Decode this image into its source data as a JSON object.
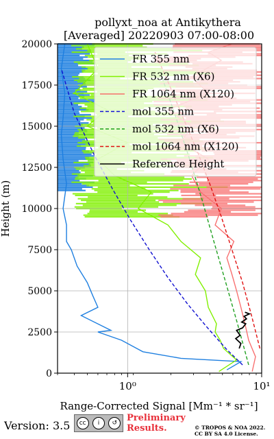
{
  "chart_data": {
    "type": "line",
    "title": "pollyxt_noa at Antikythera",
    "subtitle": "[Averaged] 20220903 07:00-08:00",
    "ylabel": "Height (m)",
    "xlabel": "Range-Corrected Signal [Mm⁻¹ * sr⁻¹]",
    "xscale": "log",
    "xlim": [
      0.3,
      10
    ],
    "ylim": [
      0,
      20000
    ],
    "yticks": [
      0,
      2500,
      5000,
      7500,
      10000,
      12500,
      15000,
      17500,
      20000
    ],
    "yticklabels": [
      "0",
      "2500",
      "5000",
      "7500",
      "10000",
      "12500",
      "15000",
      "17500",
      "20000"
    ],
    "xticks": [
      1,
      10
    ],
    "xticklabels": [
      "10⁰",
      "10¹"
    ],
    "grid": true,
    "legend_position": "top-right",
    "series": [
      {
        "name": "FR 355 nm",
        "color": "#1e7fe0",
        "style": "solid",
        "x": [
          5.5,
          7.0,
          2.5,
          1.3,
          0.9,
          0.6,
          0.75,
          0.45,
          0.6,
          0.55,
          0.5,
          0.42,
          0.38,
          0.35,
          0.35,
          0.33,
          0.35,
          0.33,
          0.32,
          0.33,
          0.34,
          0.32,
          0.34
        ],
        "y": [
          200,
          700,
          900,
          1300,
          2000,
          2500,
          2600,
          3500,
          4000,
          4700,
          5500,
          6500,
          7500,
          8000,
          9000,
          10000,
          11500,
          13000,
          14500,
          15500,
          17000,
          18500,
          20000
        ]
      },
      {
        "name": "FR 532 nm (X6)",
        "color": "#80f000",
        "style": "solid",
        "x": [
          4.8,
          6.5,
          5.2,
          4.9,
          4.5,
          4.6,
          4.0,
          3.8,
          3.2,
          3.5,
          2.5,
          2.0,
          1.2,
          1.5,
          0.8,
          0.6,
          1.0,
          0.5,
          0.7,
          0.4,
          0.6,
          0.5
        ],
        "y": [
          100,
          800,
          1500,
          2000,
          2500,
          3000,
          4000,
          5000,
          6000,
          7000,
          8000,
          9000,
          10000,
          11000,
          12000,
          13000,
          14000,
          15000,
          16000,
          17000,
          18500,
          20000
        ]
      },
      {
        "name": "FR 1064 nm (X120)",
        "color": "#f87070",
        "style": "solid",
        "x": [
          8.5,
          9.0,
          8.0,
          7.5,
          7.0,
          6.5,
          6.0,
          5.5,
          6.2,
          4.5,
          5.0,
          3.5,
          3.0,
          4.0,
          2.5,
          3.0,
          2.0,
          4.0,
          3.0,
          5.0,
          4.0,
          6.0
        ],
        "y": [
          100,
          1000,
          2000,
          3000,
          4000,
          5000,
          6000,
          7000,
          8000,
          9000,
          10000,
          11000,
          12000,
          13000,
          14000,
          15000,
          16000,
          17000,
          18000,
          19000,
          19500,
          20000
        ]
      },
      {
        "name": "mol 355 nm",
        "color": "#1010d0",
        "style": "dashed",
        "x": [
          7.2,
          5.4,
          3.9,
          2.8,
          2.0,
          1.45,
          1.05,
          0.77,
          0.56,
          0.4,
          0.32
        ],
        "y": [
          500,
          1500,
          2800,
          4200,
          5800,
          7500,
          9300,
          11200,
          13300,
          15800,
          18500
        ]
      },
      {
        "name": "mol 532 nm (X6)",
        "color": "#20a020",
        "style": "dashed",
        "x": [
          8.0,
          6.6,
          5.4,
          4.4,
          3.6,
          2.9,
          2.3,
          1.8
        ],
        "y": [
          500,
          3000,
          5500,
          8000,
          10500,
          13000,
          15500,
          18000
        ]
      },
      {
        "name": "mol 1064 nm (X120)",
        "color": "#e01010",
        "style": "dashed",
        "x": [
          9.7,
          8.4,
          7.2,
          6.0,
          5.0,
          4.1,
          3.3,
          2.6,
          2.05,
          1.6
        ],
        "y": [
          1500,
          3500,
          5500,
          7500,
          9500,
          11500,
          13500,
          15500,
          17500,
          19500
        ]
      },
      {
        "name": "Reference Height",
        "color": "#000000",
        "style": "solid",
        "x": [
          6.8,
          7.0,
          6.4,
          6.9,
          6.5,
          7.2,
          7.6,
          7.1,
          7.7,
          7.4,
          8.1,
          7.5
        ],
        "y": [
          1500,
          1800,
          2100,
          2300,
          2600,
          2750,
          3000,
          3100,
          3300,
          3450,
          3600,
          3700
        ]
      }
    ]
  },
  "footer": {
    "version_label": "Version: 3.5",
    "license_badge": "BY SA",
    "preliminary_line1": "Preliminary",
    "preliminary_line2": "Results.",
    "copyright_line1": "© TROPOS & NOA 2022.",
    "copyright_line2": "CC BY SA 4.0 License."
  },
  "colors": {
    "preliminary": "#e8303a"
  }
}
